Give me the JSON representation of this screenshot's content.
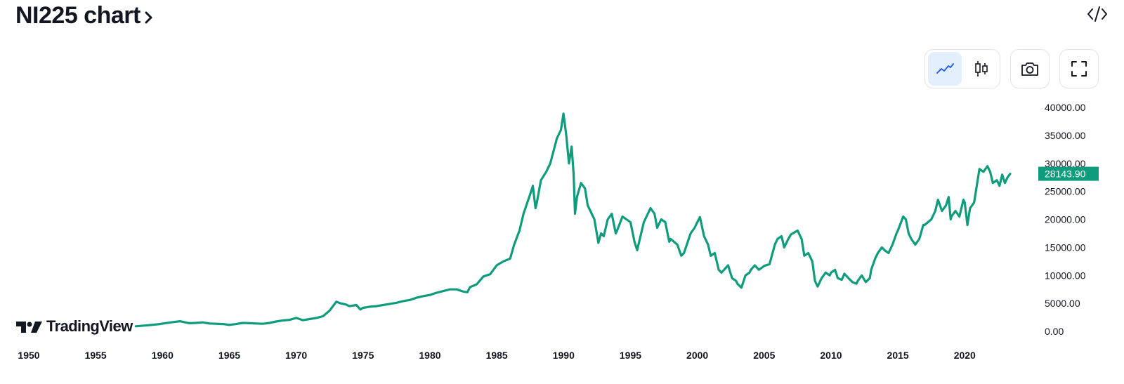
{
  "header": {
    "title": "NI225 chart",
    "title_chevron_icon": "chevron-right-icon",
    "embed_icon": "code-embed-icon"
  },
  "toolbar": {
    "line_chart_icon": "line-chart-icon",
    "candlestick_icon": "candlestick-icon",
    "camera_icon": "camera-icon",
    "fullscreen_icon": "fullscreen-icon",
    "active": "line-chart"
  },
  "branding": {
    "logo_text": "TradingView"
  },
  "colors": {
    "line": "#0e9c7c",
    "price_badge": "#0e9c7c",
    "active_button": "#e3effd",
    "accent_blue": "#2962ff"
  },
  "chart_data": {
    "type": "line",
    "series": [
      {
        "current_value": "28143.90",
        "points": [
          [
            1958.0,
            900
          ],
          [
            1959.0,
            1100
          ],
          [
            1959.8,
            1300
          ],
          [
            1960.5,
            1550
          ],
          [
            1961.3,
            1800
          ],
          [
            1961.6,
            1650
          ],
          [
            1962.0,
            1450
          ],
          [
            1962.5,
            1500
          ],
          [
            1963.0,
            1600
          ],
          [
            1963.5,
            1400
          ],
          [
            1964.0,
            1350
          ],
          [
            1964.5,
            1300
          ],
          [
            1965.0,
            1150
          ],
          [
            1965.5,
            1300
          ],
          [
            1966.0,
            1500
          ],
          [
            1966.5,
            1450
          ],
          [
            1967.0,
            1400
          ],
          [
            1967.5,
            1350
          ],
          [
            1968.0,
            1500
          ],
          [
            1968.5,
            1750
          ],
          [
            1969.0,
            1950
          ],
          [
            1969.5,
            2050
          ],
          [
            1970.0,
            2400
          ],
          [
            1970.5,
            2000
          ],
          [
            1971.0,
            2200
          ],
          [
            1971.5,
            2400
          ],
          [
            1972.0,
            2700
          ],
          [
            1972.5,
            3700
          ],
          [
            1973.0,
            5300
          ],
          [
            1973.3,
            5000
          ],
          [
            1973.7,
            4800
          ],
          [
            1974.0,
            4500
          ],
          [
            1974.5,
            4700
          ],
          [
            1974.8,
            3900
          ],
          [
            1975.0,
            4200
          ],
          [
            1975.5,
            4400
          ],
          [
            1976.0,
            4500
          ],
          [
            1976.5,
            4700
          ],
          [
            1977.0,
            4900
          ],
          [
            1977.5,
            5100
          ],
          [
            1978.0,
            5400
          ],
          [
            1978.5,
            5600
          ],
          [
            1979.0,
            6000
          ],
          [
            1979.5,
            6300
          ],
          [
            1980.0,
            6500
          ],
          [
            1980.5,
            6900
          ],
          [
            1981.0,
            7200
          ],
          [
            1981.5,
            7500
          ],
          [
            1982.0,
            7500
          ],
          [
            1982.5,
            7100
          ],
          [
            1982.8,
            7000
          ],
          [
            1983.0,
            7900
          ],
          [
            1983.5,
            8400
          ],
          [
            1984.0,
            9800
          ],
          [
            1984.5,
            10200
          ],
          [
            1985.0,
            11800
          ],
          [
            1985.5,
            12500
          ],
          [
            1986.0,
            13000
          ],
          [
            1986.3,
            15500
          ],
          [
            1986.7,
            18000
          ],
          [
            1987.0,
            21000
          ],
          [
            1987.5,
            24500
          ],
          [
            1987.7,
            26000
          ],
          [
            1987.9,
            22000
          ],
          [
            1988.0,
            23000
          ],
          [
            1988.3,
            27000
          ],
          [
            1988.7,
            28500
          ],
          [
            1989.0,
            30000
          ],
          [
            1989.5,
            34500
          ],
          [
            1989.8,
            36000
          ],
          [
            1989.99,
            38900
          ],
          [
            1990.2,
            35000
          ],
          [
            1990.4,
            30000
          ],
          [
            1990.6,
            33000
          ],
          [
            1990.75,
            28000
          ],
          [
            1990.85,
            21000
          ],
          [
            1991.0,
            24000
          ],
          [
            1991.3,
            26500
          ],
          [
            1991.6,
            25500
          ],
          [
            1991.8,
            22500
          ],
          [
            1992.0,
            21500
          ],
          [
            1992.3,
            20000
          ],
          [
            1992.6,
            15800
          ],
          [
            1992.8,
            17500
          ],
          [
            1993.0,
            17000
          ],
          [
            1993.3,
            20000
          ],
          [
            1993.6,
            21000
          ],
          [
            1993.9,
            17500
          ],
          [
            1994.0,
            18000
          ],
          [
            1994.4,
            20500
          ],
          [
            1994.7,
            20000
          ],
          [
            1995.0,
            19500
          ],
          [
            1995.3,
            16000
          ],
          [
            1995.5,
            14500
          ],
          [
            1995.8,
            17500
          ],
          [
            1996.0,
            19500
          ],
          [
            1996.5,
            22000
          ],
          [
            1996.8,
            21000
          ],
          [
            1997.0,
            18500
          ],
          [
            1997.3,
            20000
          ],
          [
            1997.6,
            19500
          ],
          [
            1997.9,
            16000
          ],
          [
            1998.0,
            16500
          ],
          [
            1998.5,
            15500
          ],
          [
            1998.8,
            13500
          ],
          [
            1999.0,
            14000
          ],
          [
            1999.5,
            17500
          ],
          [
            1999.8,
            18500
          ],
          [
            2000.0,
            19500
          ],
          [
            2000.2,
            20400
          ],
          [
            2000.5,
            17000
          ],
          [
            2000.8,
            15500
          ],
          [
            2001.0,
            13500
          ],
          [
            2001.3,
            14000
          ],
          [
            2001.6,
            11000
          ],
          [
            2001.8,
            10500
          ],
          [
            2002.0,
            11000
          ],
          [
            2002.3,
            11800
          ],
          [
            2002.6,
            9500
          ],
          [
            2002.9,
            9000
          ],
          [
            2003.0,
            8500
          ],
          [
            2003.3,
            7800
          ],
          [
            2003.6,
            10000
          ],
          [
            2003.9,
            10500
          ],
          [
            2004.0,
            11000
          ],
          [
            2004.3,
            11800
          ],
          [
            2004.6,
            11000
          ],
          [
            2004.9,
            11500
          ],
          [
            2005.0,
            11700
          ],
          [
            2005.4,
            12000
          ],
          [
            2005.8,
            15500
          ],
          [
            2006.0,
            16500
          ],
          [
            2006.3,
            17000
          ],
          [
            2006.5,
            15000
          ],
          [
            2006.8,
            16500
          ],
          [
            2007.0,
            17300
          ],
          [
            2007.5,
            18000
          ],
          [
            2007.8,
            16500
          ],
          [
            2008.0,
            13500
          ],
          [
            2008.3,
            14000
          ],
          [
            2008.6,
            12500
          ],
          [
            2008.8,
            9000
          ],
          [
            2009.0,
            8000
          ],
          [
            2009.3,
            9500
          ],
          [
            2009.6,
            10500
          ],
          [
            2009.9,
            10000
          ],
          [
            2010.0,
            10500
          ],
          [
            2010.3,
            11000
          ],
          [
            2010.5,
            9500
          ],
          [
            2010.8,
            9200
          ],
          [
            2011.0,
            10300
          ],
          [
            2011.3,
            9500
          ],
          [
            2011.6,
            8800
          ],
          [
            2011.9,
            8500
          ],
          [
            2012.0,
            9000
          ],
          [
            2012.3,
            10000
          ],
          [
            2012.6,
            8800
          ],
          [
            2012.9,
            9500
          ],
          [
            2013.0,
            11000
          ],
          [
            2013.3,
            13000
          ],
          [
            2013.5,
            14000
          ],
          [
            2013.8,
            15000
          ],
          [
            2014.0,
            14500
          ],
          [
            2014.3,
            14000
          ],
          [
            2014.6,
            15500
          ],
          [
            2014.9,
            17500
          ],
          [
            2015.0,
            18000
          ],
          [
            2015.4,
            20500
          ],
          [
            2015.6,
            20000
          ],
          [
            2015.8,
            17500
          ],
          [
            2016.0,
            16500
          ],
          [
            2016.3,
            15500
          ],
          [
            2016.6,
            16500
          ],
          [
            2016.9,
            19000
          ],
          [
            2017.0,
            19000
          ],
          [
            2017.5,
            20000
          ],
          [
            2017.8,
            21500
          ],
          [
            2018.0,
            23500
          ],
          [
            2018.3,
            21500
          ],
          [
            2018.6,
            22500
          ],
          [
            2018.8,
            24000
          ],
          [
            2018.95,
            20000
          ],
          [
            2019.0,
            20500
          ],
          [
            2019.3,
            21500
          ],
          [
            2019.6,
            20500
          ],
          [
            2019.9,
            23500
          ],
          [
            2020.0,
            23000
          ],
          [
            2020.2,
            19000
          ],
          [
            2020.4,
            22000
          ],
          [
            2020.7,
            23000
          ],
          [
            2020.9,
            26000
          ],
          [
            2021.1,
            29000
          ],
          [
            2021.4,
            28500
          ],
          [
            2021.7,
            29500
          ],
          [
            2021.9,
            28500
          ],
          [
            2022.1,
            26500
          ],
          [
            2022.4,
            27000
          ],
          [
            2022.6,
            26000
          ],
          [
            2022.8,
            28000
          ],
          [
            2023.0,
            26500
          ],
          [
            2023.2,
            27500
          ],
          [
            2023.4,
            28143.9
          ]
        ]
      }
    ],
    "x_ticks": [
      "1950",
      "1955",
      "1960",
      "1965",
      "1970",
      "1975",
      "1980",
      "1985",
      "1990",
      "1995",
      "2000",
      "2005",
      "2010",
      "2015",
      "2020"
    ],
    "y_ticks": [
      "0.00",
      "5000.00",
      "10000.00",
      "15000.00",
      "20000.00",
      "25000.00",
      "30000.00",
      "35000.00",
      "40000.00"
    ],
    "xlim": [
      1950,
      2023.4
    ],
    "ylim": [
      0,
      40000
    ],
    "grid": false,
    "legend": "none"
  }
}
